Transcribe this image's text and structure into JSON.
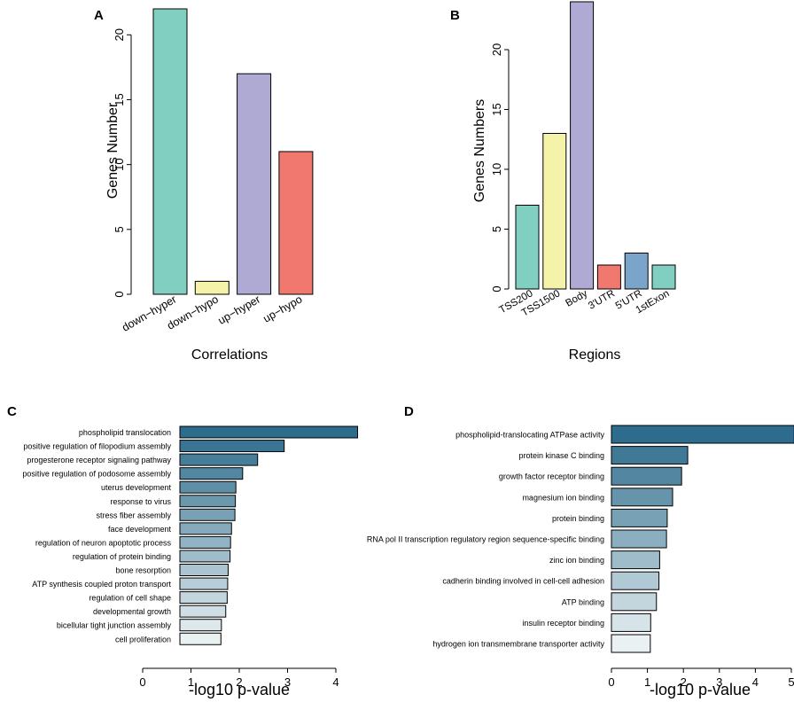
{
  "chart_data": [
    {
      "panel": "A",
      "type": "bar",
      "categories": [
        "down−hyper",
        "down−hypo",
        "up−hyper",
        "up−hypo"
      ],
      "values": [
        22,
        1,
        17,
        11
      ],
      "colors": [
        "#80cfc1",
        "#f5f2aa",
        "#aeaad3",
        "#f0786e"
      ],
      "title": "",
      "xlabel": "Correlations",
      "ylabel": "Genes Number",
      "yticks": [
        0,
        5,
        10,
        15,
        20
      ],
      "ylim": [
        0,
        22
      ]
    },
    {
      "panel": "B",
      "type": "bar",
      "categories": [
        "TSS200",
        "TSS1500",
        "Body",
        "3'UTR",
        "5'UTR",
        "1stExon"
      ],
      "values": [
        7,
        13,
        24,
        2,
        3,
        2
      ],
      "colors": [
        "#80cfc1",
        "#f5f2aa",
        "#aeaad3",
        "#f0786e",
        "#7ba4cb",
        "#80cfc1"
      ],
      "title": "",
      "xlabel": "Regions",
      "ylabel": "Genes Numbers",
      "yticks": [
        0,
        5,
        10,
        15,
        20
      ],
      "ylim": [
        0,
        24
      ]
    },
    {
      "panel": "C",
      "type": "bar",
      "orientation": "horizontal",
      "categories": [
        "phospholipid translocation",
        "positive regulation of filopodium assembly",
        "progesterone receptor signaling pathway",
        "positive regulation of podosome assembly",
        "uterus development",
        "response to virus",
        "stress fiber assembly",
        "face development",
        "regulation of neuron apoptotic process",
        "regulation of protein binding",
        "bone resorption",
        "ATP synthesis coupled proton transport",
        "regulation of cell shape",
        "developmental growth",
        "bicellular tight junction assembly",
        "cell proliferation"
      ],
      "values": [
        4.45,
        2.93,
        2.38,
        2.07,
        1.93,
        1.92,
        1.91,
        1.84,
        1.82,
        1.81,
        1.77,
        1.76,
        1.75,
        1.72,
        1.63,
        1.62
      ],
      "xlabel": "-log10 p-value",
      "xticks": [
        0,
        1,
        2,
        3,
        4
      ],
      "xlim": [
        0,
        4.45
      ]
    },
    {
      "panel": "D",
      "type": "bar",
      "orientation": "horizontal",
      "categories": [
        "phospholipid-translocating ATPase activity",
        "protein kinase C binding",
        "growth factor receptor binding",
        "magnesium ion binding",
        "protein binding",
        "RNA pol II transcription regulatory region sequence-specific binding",
        "zinc ion binding",
        "cadherin binding involved in cell-cell adhesion",
        "ATP binding",
        "insulin receptor binding",
        "hydrogen ion transmembrane transporter activity"
      ],
      "values": [
        5.08,
        2.12,
        1.95,
        1.7,
        1.55,
        1.53,
        1.34,
        1.32,
        1.25,
        1.09,
        1.08
      ],
      "xlabel": "-log10 p-value",
      "xticks": [
        0,
        1,
        2,
        3,
        4,
        5
      ],
      "xlim": [
        0,
        5.08
      ]
    }
  ]
}
